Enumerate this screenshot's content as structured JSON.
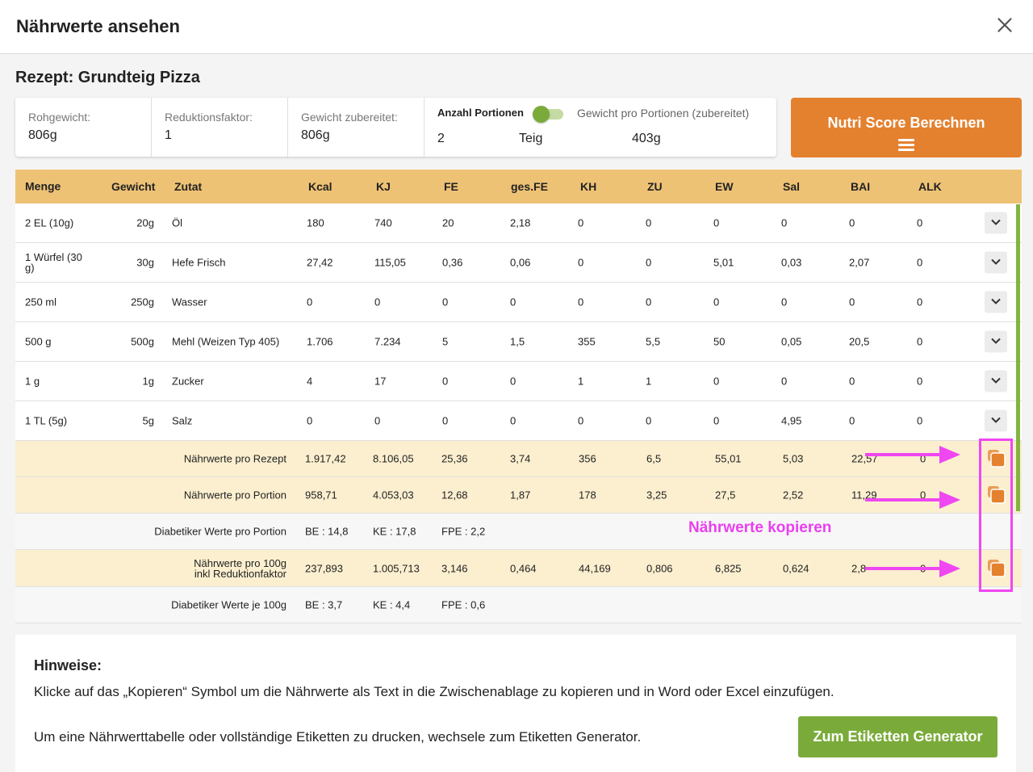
{
  "modal": {
    "title": "Nährwerte ansehen"
  },
  "recipe": {
    "title": "Rezept: Grundteig Pizza"
  },
  "info": {
    "rohgewicht_label": "Rohgewicht:",
    "rohgewicht_value": "806g",
    "reduktion_label": "Reduktionsfaktor:",
    "reduktion_value": "1",
    "gewicht_zubereitet_label": "Gewicht zubereitet:",
    "gewicht_zubereitet_value": "806g",
    "portionen_label": "Anzahl Portionen",
    "portionen_value": "2",
    "portionen_unit": "Teig",
    "gewicht_pro_portion_label": "Gewicht pro Portionen (zubereitet)",
    "gewicht_pro_portion_value": "403g"
  },
  "nutri_button": {
    "label": "Nutri Score Berechnen"
  },
  "table": {
    "headers": [
      "Menge",
      "Gewicht",
      "Zutat",
      "Kcal",
      "KJ",
      "FE",
      "ges.FE",
      "KH",
      "ZU",
      "EW",
      "Sal",
      "BAI",
      "ALK"
    ],
    "rows": [
      {
        "menge": "2 EL (10g)",
        "gewicht": "20g",
        "zutat": "Öl",
        "values": [
          "180",
          "740",
          "20",
          "2,18",
          "0",
          "0",
          "0",
          "0",
          "0",
          "0"
        ]
      },
      {
        "menge": "1 Würfel (30 g)",
        "gewicht": "30g",
        "zutat": "Hefe Frisch",
        "values": [
          "27,42",
          "115,05",
          "0,36",
          "0,06",
          "0",
          "0",
          "5,01",
          "0,03",
          "2,07",
          "0"
        ]
      },
      {
        "menge": "250 ml",
        "gewicht": "250g",
        "zutat": "Wasser",
        "values": [
          "0",
          "0",
          "0",
          "0",
          "0",
          "0",
          "0",
          "0",
          "0",
          "0"
        ]
      },
      {
        "menge": "500 g",
        "gewicht": "500g",
        "zutat": "Mehl (Weizen Typ 405)",
        "values": [
          "1.706",
          "7.234",
          "5",
          "1,5",
          "355",
          "5,5",
          "50",
          "0,05",
          "20,5",
          "0"
        ]
      },
      {
        "menge": "1 g",
        "gewicht": "1g",
        "zutat": "Zucker",
        "values": [
          "4",
          "17",
          "0",
          "0",
          "1",
          "1",
          "0",
          "0",
          "0",
          "0"
        ]
      },
      {
        "menge": "1 TL (5g)",
        "gewicht": "5g",
        "zutat": "Salz",
        "values": [
          "0",
          "0",
          "0",
          "0",
          "0",
          "0",
          "0",
          "4,95",
          "0",
          "0"
        ]
      }
    ],
    "totals_rezept": {
      "label": "Nährwerte pro Rezept",
      "values": [
        "1.917,42",
        "8.106,05",
        "25,36",
        "3,74",
        "356",
        "6,5",
        "55,01",
        "5,03",
        "22,57",
        "0"
      ]
    },
    "totals_portion": {
      "label": "Nährwerte pro Portion",
      "values": [
        "958,71",
        "4.053,03",
        "12,68",
        "1,87",
        "178",
        "3,25",
        "27,5",
        "2,52",
        "11,29",
        "0"
      ]
    },
    "diabetic_portion": {
      "label": "Diabetiker Werte pro Portion",
      "values": [
        "BE : 14,8",
        "KE : 17,8",
        "FPE : 2,2"
      ]
    },
    "totals_100g": {
      "label_line1": "Nährwerte pro 100g",
      "label_line2": "inkl Reduktionfaktor",
      "values": [
        "237,893",
        "1.005,713",
        "3,146",
        "0,464",
        "44,169",
        "0,806",
        "6,825",
        "0,624",
        "2,8",
        "0"
      ]
    },
    "diabetic_100g": {
      "label": "Diabetiker Werte je 100g",
      "values": [
        "BE : 3,7",
        "KE : 4,4",
        "FPE : 0,6"
      ]
    }
  },
  "annotation": {
    "text": "Nährwerte kopieren",
    "color": "#ea3ff0"
  },
  "notes": {
    "title": "Hinweise:",
    "line1": "Klicke auf das „Kopieren“ Symbol um die Nährwerte als Text in die Zwischenablage zu kopieren und in Word oder Excel einzufügen.",
    "line2": "Um eine Nährwerttabelle oder vollständige Etiketten zu drucken, wechsele zum Etiketten Generator."
  },
  "etiketten_button": {
    "label": "Zum Etiketten Generator"
  },
  "colors": {
    "accent_orange": "#e4812f",
    "header_yellow": "#eec275",
    "total_row": "#fbefcf",
    "green": "#7aab3a"
  }
}
